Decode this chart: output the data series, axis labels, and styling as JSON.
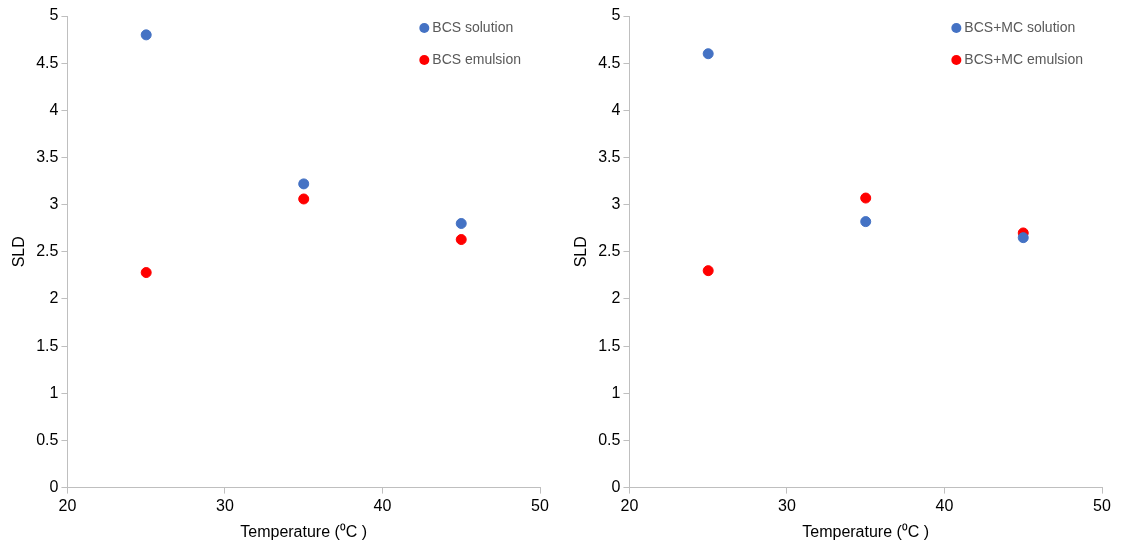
{
  "chart_data": [
    {
      "type": "scatter",
      "x": [
        25,
        35,
        45
      ],
      "xlabel": "Temperature (⁰C )",
      "ylabel": "SLD",
      "xlim": [
        20,
        50
      ],
      "xticks": [
        20,
        30,
        40,
        50
      ],
      "ylim": [
        0,
        5
      ],
      "yticks": [
        0,
        0.5,
        1,
        1.5,
        2,
        2.5,
        3,
        3.5,
        4,
        4.5,
        5
      ],
      "grid": false,
      "legend": "top right",
      "marker": "circle",
      "series": [
        {
          "name": "BCS solution",
          "color": "#4472c4",
          "values": [
            4.8,
            3.22,
            2.8
          ]
        },
        {
          "name": "BCS emulsion",
          "color": "#ff0000",
          "values": [
            2.28,
            3.06,
            2.63
          ]
        }
      ]
    },
    {
      "type": "scatter",
      "x": [
        25,
        35,
        45
      ],
      "xlabel": "Temperature (⁰C )",
      "ylabel": "SLD",
      "xlim": [
        20,
        50
      ],
      "xticks": [
        20,
        30,
        40,
        50
      ],
      "ylim": [
        0,
        5
      ],
      "yticks": [
        0,
        0.5,
        1,
        1.5,
        2,
        2.5,
        3,
        3.5,
        4,
        4.5,
        5
      ],
      "grid": false,
      "legend": "top right",
      "marker": "circle",
      "series": [
        {
          "name": "BCS+MC solution",
          "color": "#4472c4",
          "values": [
            4.6,
            2.82,
            2.65
          ]
        },
        {
          "name": "BCS+MC emulsion",
          "color": "#ff0000",
          "values": [
            2.3,
            3.07,
            2.7
          ]
        }
      ]
    }
  ]
}
